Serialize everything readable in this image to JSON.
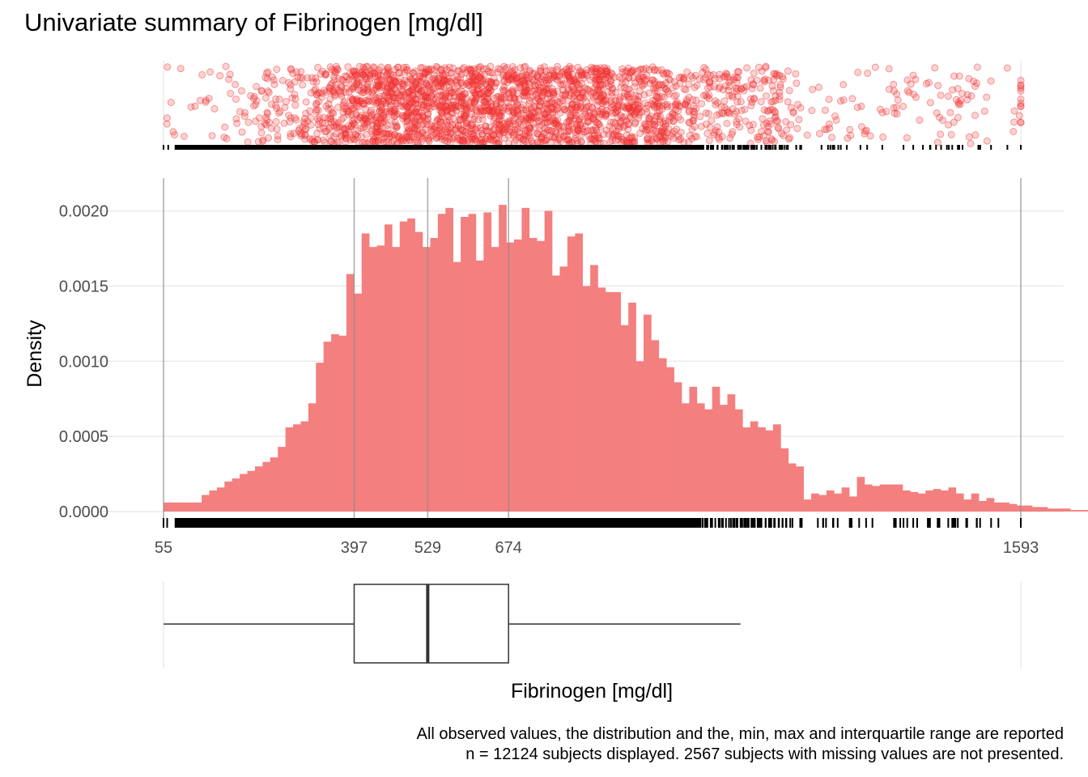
{
  "title": "Univariate summary of Fibrinogen [mg/dl]",
  "caption": {
    "line1": "All observed values, the distribution and the, min, max and interquartile range are reported",
    "line2": "n = 12124 subjects displayed. 2567 subjects with missing values are not presented."
  },
  "colors": {
    "accent": "#f03030",
    "hist_fill": "#f47f7f",
    "grid": "#ebebeb",
    "vline": "#8c8c8c",
    "text": "#4d4d4d"
  },
  "chart_data": {
    "type": "bar",
    "xlabel": "Fibrinogen [mg/dl]",
    "ylabel": "Density",
    "xlim": [
      55,
      1593
    ],
    "ylim": [
      0,
      0.0021
    ],
    "yticks": [
      0,
      0.0005,
      0.001,
      0.0015,
      0.002
    ],
    "ytick_labels": [
      "0.0000",
      "0.0005",
      "0.0010",
      "0.0015",
      "0.0020"
    ],
    "xticks": [
      55,
      397,
      529,
      674,
      1593
    ],
    "xtick_labels": [
      "55",
      "397",
      "529",
      "674",
      "1593"
    ],
    "grid": true,
    "summary": {
      "min": 55,
      "q1": 397,
      "median": 529,
      "q3": 674,
      "max": 1593,
      "upper_whisker": 1090
    },
    "histogram": {
      "bin_start": 55,
      "bin_width": 13.67,
      "densities": [
        6e-05,
        6e-05,
        6e-05,
        6e-05,
        6e-05,
        0.00011,
        0.00014,
        0.00016,
        0.0002,
        0.00022,
        0.00025,
        0.00027,
        0.0003,
        0.00033,
        0.00036,
        0.00043,
        0.00056,
        0.00058,
        0.0006,
        0.00072,
        0.00099,
        0.00113,
        0.00118,
        0.00117,
        0.00158,
        0.00145,
        0.00185,
        0.00176,
        0.00177,
        0.00191,
        0.00176,
        0.00193,
        0.00195,
        0.00186,
        0.00176,
        0.00182,
        0.00198,
        0.00202,
        0.00166,
        0.00196,
        0.00198,
        0.00167,
        0.00199,
        0.00176,
        0.00204,
        0.00179,
        0.00181,
        0.00202,
        0.00182,
        0.0018,
        0.002,
        0.00157,
        0.00163,
        0.00183,
        0.00185,
        0.0015,
        0.00164,
        0.00149,
        0.00146,
        0.00146,
        0.00124,
        0.00139,
        0.001,
        0.00131,
        0.00114,
        0.00102,
        0.00096,
        0.00086,
        0.00072,
        0.00083,
        0.00072,
        0.00068,
        0.00083,
        0.00071,
        0.00078,
        0.00068,
        0.00056,
        0.0006,
        0.00056,
        0.00054,
        0.00058,
        0.00042,
        0.00032,
        0.0003,
        8e-05,
        0.00012,
        0.00011,
        0.00014,
        0.00012,
        0.00016,
        0.0001,
        0.00023,
        0.00018,
        0.00017,
        0.00018,
        0.00018,
        0.00018,
        0.00014,
        0.00013,
        0.00012,
        0.00014,
        0.00015,
        0.00014,
        0.00016,
        0.00012,
        8e-05,
        0.00012,
        7e-05,
        9e-05,
        6e-05,
        6e-05,
        5e-05,
        4e-05,
        4e-05,
        3e-05,
        3e-05,
        2e-05,
        2e-05,
        2e-05,
        1e-05,
        1e-05,
        1e-05,
        1e-05,
        1e-05,
        1e-05,
        6e-06,
        4e-06,
        3e-06,
        2e-06,
        1e-06,
        1e-06,
        1e-06,
        1e-06,
        1e-06,
        1e-06,
        1e-06,
        1e-06,
        1e-06,
        1e-06,
        1e-06,
        1e-06,
        1e-06,
        1e-06,
        1e-06,
        1e-06,
        1e-06,
        1e-06,
        1e-06,
        1e-06,
        1e-06,
        1e-06
      ]
    }
  }
}
